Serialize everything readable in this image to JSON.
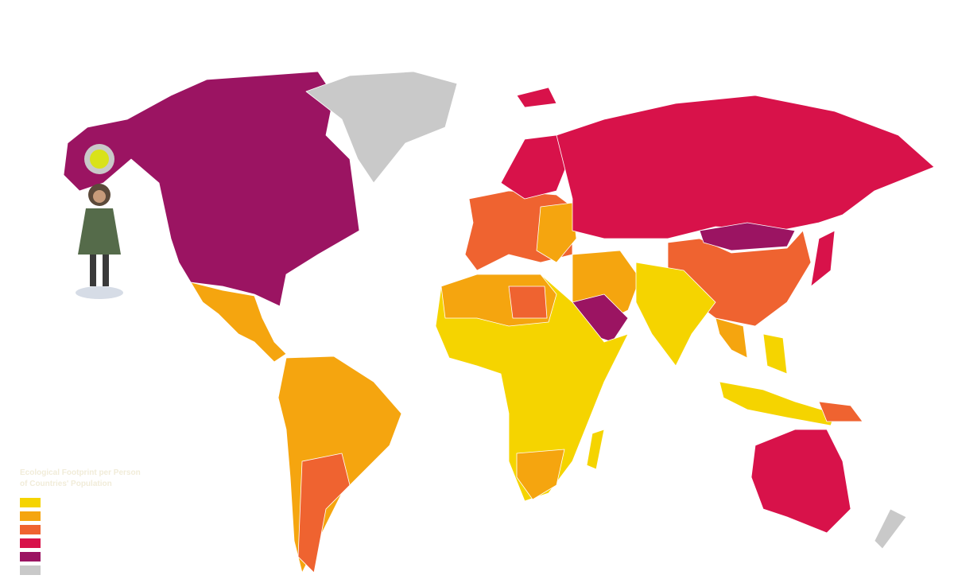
{
  "legend": {
    "title_lines": [
      "Ecological Footprint per Person",
      "of Countries' Population"
    ],
    "colors": [
      "#f5d400",
      "#f5a50f",
      "#ef6330",
      "#d8124a",
      "#9b1462",
      "#c9c9c9"
    ]
  }
}
